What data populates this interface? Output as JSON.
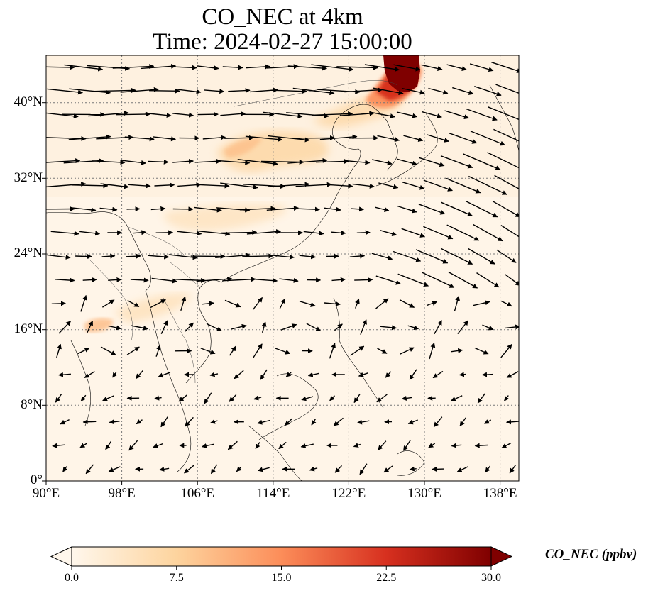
{
  "map": {
    "title_line1": "CO_NEC at 4km",
    "title_line2": "Time: 2024-02-27 15:00:00",
    "lon_range": [
      90,
      140
    ],
    "lat_range": [
      0,
      45
    ],
    "lat_ticks": [
      "0°",
      "8°N",
      "16°N",
      "24°N",
      "32°N",
      "40°N"
    ],
    "lon_ticks": [
      "90°E",
      "98°E",
      "106°E",
      "114°E",
      "122°E",
      "130°E",
      "138°E"
    ],
    "gridlines": true,
    "colormap": "OrRd",
    "plume_colors": [
      "#fff5e8",
      "#fdd49e",
      "#fc8d59",
      "#d7301f",
      "#7f0000"
    ]
  },
  "colorbar": {
    "label": "CO_NEC (ppbv)",
    "min": 0.0,
    "max": 30.0,
    "extend": "both",
    "ticks": [
      "0.0",
      "7.5",
      "15.0",
      "22.5",
      "30.0"
    ]
  }
}
